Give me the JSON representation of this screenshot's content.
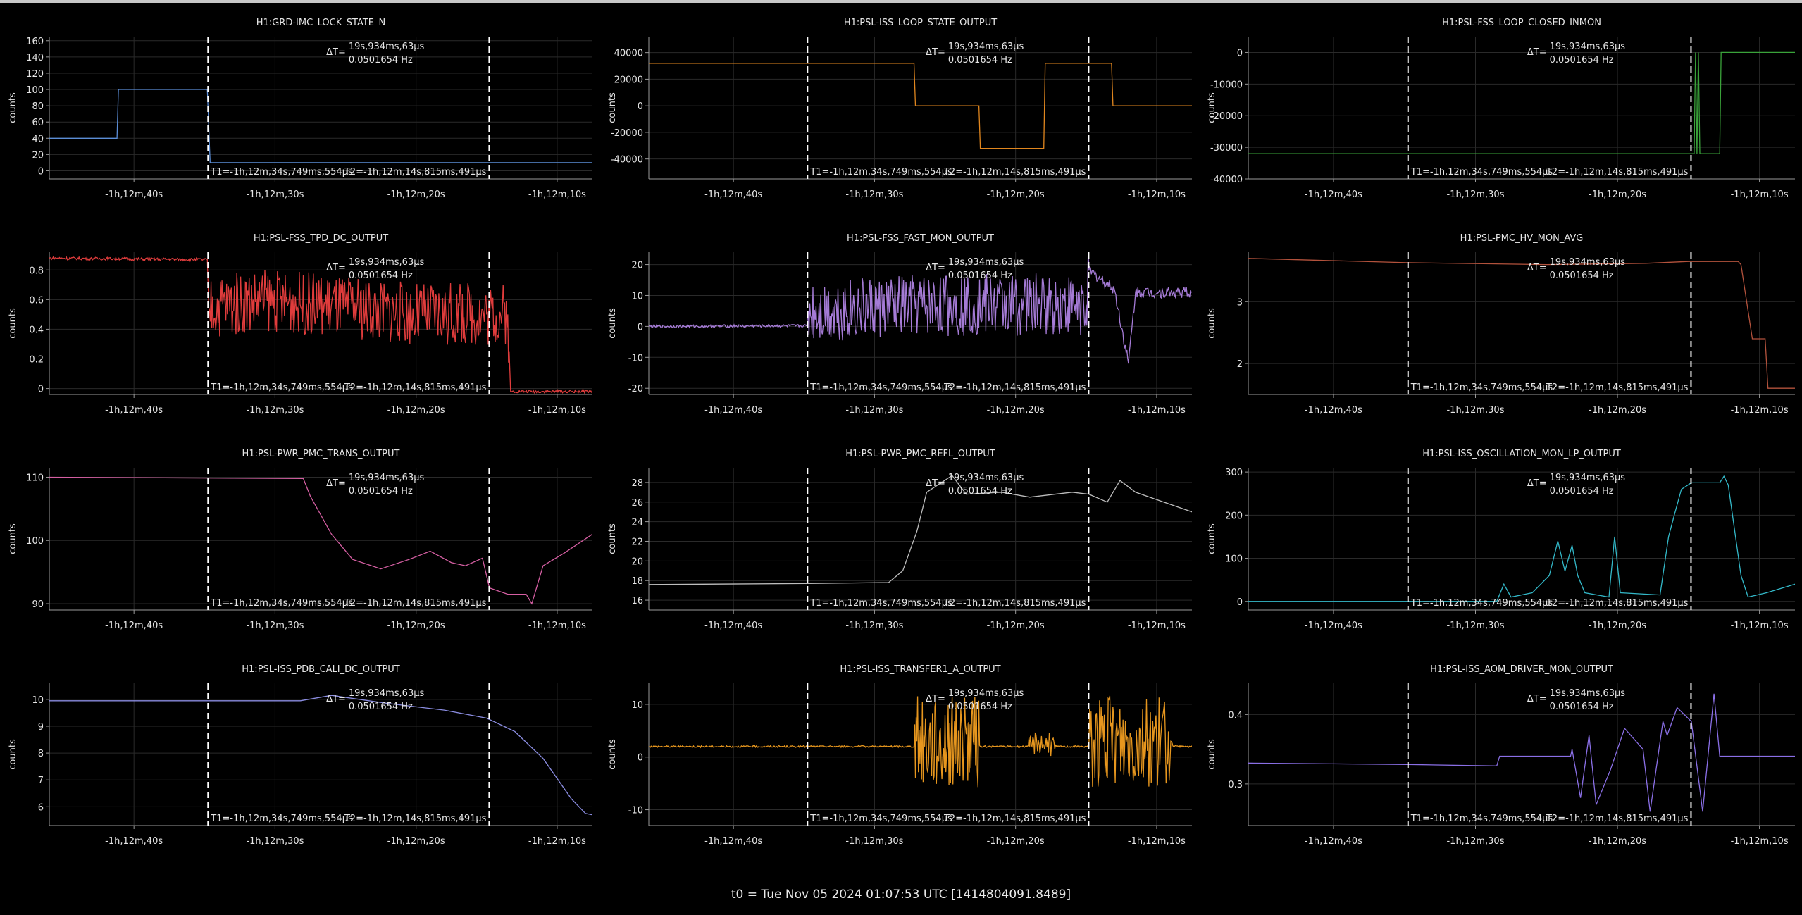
{
  "footer": "t0 = Tue Nov 05 2024 01:07:53 UTC [1414804091.8489]",
  "cursor": {
    "dt_line1": "19s,934ms,63μs",
    "dt_line2": "0.0501654 Hz",
    "dt_prefix": "ΔT=",
    "t1_label": "T1=-1h,12m,34s,749ms,554μs",
    "t2_label": "T2=-1h,12m,14s,815ms,491μs",
    "t1": -34.75,
    "t2": -14.82
  },
  "x_axis": {
    "range": [
      -46,
      -7.5
    ],
    "ticks": [
      {
        "value": -40,
        "label": "-1h,12m,40s"
      },
      {
        "value": -30,
        "label": "-1h,12m,30s"
      },
      {
        "value": -20,
        "label": "-1h,12m,20s"
      },
      {
        "value": -10,
        "label": "-1h,12m,10s"
      }
    ]
  },
  "chart_data": [
    {
      "type": "line",
      "title": "H1:GRD-IMC_LOCK_STATE_N",
      "ylabel": "counts",
      "color": "#5b8dd6",
      "ylim": [
        -10,
        165
      ],
      "yticks": [
        0,
        20,
        40,
        60,
        80,
        100,
        120,
        140,
        160
      ],
      "noisy": false,
      "points": [
        [
          -46,
          40
        ],
        [
          -41.2,
          40
        ],
        [
          -41.1,
          100
        ],
        [
          -34.8,
          100
        ],
        [
          -34.6,
          10
        ],
        [
          -7.5,
          10
        ]
      ]
    },
    {
      "type": "line",
      "title": "H1:PSL-ISS_LOOP_STATE_OUTPUT",
      "ylabel": "counts",
      "color": "#e0861e",
      "ylim": [
        -55000,
        52000
      ],
      "yticks": [
        -40000,
        -20000,
        0,
        20000,
        40000
      ],
      "noisy": false,
      "points": [
        [
          -46,
          32000
        ],
        [
          -28.5,
          32000
        ],
        [
          -28.5,
          32000
        ],
        [
          -27.2,
          32000
        ],
        [
          -27.1,
          0
        ],
        [
          -22.6,
          0
        ],
        [
          -22.5,
          -32000
        ],
        [
          -18,
          -32000
        ],
        [
          -17.9,
          32000
        ],
        [
          -13.2,
          32000
        ],
        [
          -13.1,
          0
        ],
        [
          -7.5,
          0
        ]
      ]
    },
    {
      "type": "line",
      "title": "H1:PSL-FSS_LOOP_CLOSED_INMON",
      "ylabel": "counts",
      "color": "#3aa33a",
      "ylim": [
        -40000,
        5000
      ],
      "yticks": [
        -40000,
        -30000,
        -20000,
        -10000,
        0
      ],
      "noisy": false,
      "points": [
        [
          -46,
          -32000
        ],
        [
          -14.8,
          -32000
        ],
        [
          -14.6,
          -32000
        ],
        [
          -14.5,
          0
        ],
        [
          -14.4,
          -32000
        ],
        [
          -14.3,
          0
        ],
        [
          -14.2,
          -32000
        ],
        [
          -12.9,
          -32000
        ],
        [
          -12.8,
          -32000
        ],
        [
          -12.7,
          0
        ],
        [
          -7.5,
          0
        ]
      ]
    },
    {
      "type": "line",
      "title": "H1:PSL-FSS_TPD_DC_OUTPUT",
      "ylabel": "counts",
      "color": "#e03c3c",
      "ylim": [
        -0.04,
        0.92
      ],
      "yticks": [
        0,
        0.2,
        0.4,
        0.6,
        0.8
      ],
      "noisy": true,
      "points": [
        [
          -46,
          0.88
        ],
        [
          -34.8,
          0.87
        ],
        [
          -34.7,
          0.55
        ],
        [
          -31,
          0.6
        ],
        [
          -25,
          0.55
        ],
        [
          -20,
          0.5
        ],
        [
          -15,
          0.5
        ],
        [
          -13.5,
          0.5
        ],
        [
          -13.3,
          -0.02
        ],
        [
          -7.5,
          -0.02
        ]
      ]
    },
    {
      "type": "line",
      "title": "H1:PSL-FSS_FAST_MON_OUTPUT",
      "ylabel": "counts",
      "color": "#a57bd6",
      "ylim": [
        -22,
        24
      ],
      "yticks": [
        -20,
        -10,
        0,
        10,
        20
      ],
      "noisy": true,
      "points": [
        [
          -46,
          0
        ],
        [
          -34.8,
          0.2
        ],
        [
          -34.7,
          5
        ],
        [
          -25,
          7
        ],
        [
          -15,
          7
        ],
        [
          -14.8,
          18
        ],
        [
          -13,
          12
        ],
        [
          -12,
          -12
        ],
        [
          -11.5,
          11
        ],
        [
          -7.5,
          11
        ]
      ]
    },
    {
      "type": "line",
      "title": "H1:PSL-PMC_HV_MON_AVG",
      "ylabel": "counts",
      "color": "#b3523c",
      "ylim": [
        1.5,
        3.8
      ],
      "yticks": [
        2,
        3
      ],
      "noisy": false,
      "points": [
        [
          -46,
          3.7
        ],
        [
          -34.8,
          3.63
        ],
        [
          -25,
          3.6
        ],
        [
          -18,
          3.62
        ],
        [
          -15,
          3.65
        ],
        [
          -11.5,
          3.65
        ],
        [
          -11.3,
          3.6
        ],
        [
          -10.5,
          2.4
        ],
        [
          -9.6,
          2.4
        ],
        [
          -9.4,
          1.6
        ],
        [
          -7.5,
          1.6
        ]
      ]
    },
    {
      "type": "line",
      "title": "H1:PSL-PWR_PMC_TRANS_OUTPUT",
      "ylabel": "counts",
      "color": "#d65fa3",
      "ylim": [
        89,
        111.5
      ],
      "yticks": [
        90,
        100,
        110
      ],
      "noisy": false,
      "points": [
        [
          -46,
          110
        ],
        [
          -28,
          109.8
        ],
        [
          -27.5,
          107
        ],
        [
          -26,
          101
        ],
        [
          -24.5,
          97
        ],
        [
          -22.5,
          95.5
        ],
        [
          -20.5,
          97
        ],
        [
          -19,
          98.3
        ],
        [
          -17.5,
          96.5
        ],
        [
          -16.5,
          96
        ],
        [
          -15.3,
          97.2
        ],
        [
          -14.8,
          92.5
        ],
        [
          -13.5,
          91.5
        ],
        [
          -12.2,
          91.5
        ],
        [
          -11.8,
          90
        ],
        [
          -11,
          96
        ],
        [
          -9.5,
          98
        ],
        [
          -7.5,
          101
        ]
      ]
    },
    {
      "type": "line",
      "title": "H1:PSL-PWR_PMC_REFL_OUTPUT",
      "ylabel": "counts",
      "color": "#bdbdbd",
      "ylim": [
        15,
        29.5
      ],
      "yticks": [
        16,
        18,
        20,
        22,
        24,
        26,
        28
      ],
      "noisy": false,
      "points": [
        [
          -46,
          17.6
        ],
        [
          -34.8,
          17.7
        ],
        [
          -29,
          17.8
        ],
        [
          -28,
          19
        ],
        [
          -27,
          23
        ],
        [
          -26.3,
          27
        ],
        [
          -24.5,
          28.7
        ],
        [
          -23.5,
          26.8
        ],
        [
          -21,
          27
        ],
        [
          -19,
          26.5
        ],
        [
          -16,
          27
        ],
        [
          -14.8,
          26.8
        ],
        [
          -13.5,
          26
        ],
        [
          -12.6,
          28.2
        ],
        [
          -11.5,
          27
        ],
        [
          -9.5,
          26
        ],
        [
          -7.5,
          25
        ]
      ]
    },
    {
      "type": "line",
      "title": "H1:PSL-ISS_OSCILLATION_MON_LP_OUTPUT",
      "ylabel": "counts",
      "color": "#33b8c8",
      "ylim": [
        -20,
        310
      ],
      "yticks": [
        0,
        100,
        200,
        300
      ],
      "noisy": false,
      "points": [
        [
          -46,
          0
        ],
        [
          -34.8,
          0
        ],
        [
          -28.5,
          0
        ],
        [
          -28,
          40
        ],
        [
          -27.5,
          10
        ],
        [
          -26,
          20
        ],
        [
          -24.8,
          60
        ],
        [
          -24.2,
          140
        ],
        [
          -23.7,
          70
        ],
        [
          -23.2,
          130
        ],
        [
          -22.8,
          60
        ],
        [
          -22.3,
          20
        ],
        [
          -20.6,
          10
        ],
        [
          -20.2,
          150
        ],
        [
          -19.8,
          20
        ],
        [
          -17,
          15
        ],
        [
          -16.4,
          150
        ],
        [
          -16,
          200
        ],
        [
          -15.5,
          260
        ],
        [
          -14.8,
          275
        ],
        [
          -12.8,
          275
        ],
        [
          -12.5,
          290
        ],
        [
          -12.2,
          270
        ],
        [
          -11.3,
          60
        ],
        [
          -10.8,
          10
        ],
        [
          -9.5,
          20
        ],
        [
          -7.5,
          40
        ]
      ]
    },
    {
      "type": "line",
      "title": "H1:PSL-ISS_PDB_CALI_DC_OUTPUT",
      "ylabel": "counts",
      "color": "#8a8ce0",
      "ylim": [
        5.3,
        10.6
      ],
      "yticks": [
        6,
        7,
        8,
        9,
        10
      ],
      "noisy": false,
      "points": [
        [
          -46,
          9.95
        ],
        [
          -28.2,
          9.95
        ],
        [
          -26,
          10.15
        ],
        [
          -22,
          9.85
        ],
        [
          -18,
          9.6
        ],
        [
          -15,
          9.3
        ],
        [
          -13,
          8.8
        ],
        [
          -11,
          7.8
        ],
        [
          -9,
          6.3
        ],
        [
          -8,
          5.75
        ],
        [
          -7.5,
          5.7
        ]
      ]
    },
    {
      "type": "line",
      "title": "H1:PSL-ISS_TRANSFER1_A_OUTPUT",
      "ylabel": "counts",
      "color": "#e6961e",
      "ylim": [
        -13,
        14
      ],
      "yticks": [
        -10,
        0,
        10
      ],
      "noisy": true,
      "points": [
        [
          -46,
          2
        ],
        [
          -27.2,
          2
        ],
        [
          -27,
          3
        ],
        [
          -23,
          3
        ],
        [
          -22.5,
          2
        ],
        [
          -19.2,
          2
        ],
        [
          -19,
          2
        ],
        [
          -18.5,
          3
        ],
        [
          -17,
          2
        ],
        [
          -14.8,
          2
        ],
        [
          -14.6,
          3
        ],
        [
          -9,
          3
        ],
        [
          -8.8,
          2
        ],
        [
          -7.5,
          2
        ]
      ]
    },
    {
      "type": "line",
      "title": "H1:PSL-ISS_AOM_DRIVER_MON_OUTPUT",
      "ylabel": "counts",
      "color": "#8a6fe6",
      "ylim": [
        0.24,
        0.445
      ],
      "yticks": [
        0.3,
        0.4
      ],
      "noisy": false,
      "points": [
        [
          -46,
          0.33
        ],
        [
          -34.8,
          0.328
        ],
        [
          -28.5,
          0.326
        ],
        [
          -28.3,
          0.34
        ],
        [
          -23.3,
          0.34
        ],
        [
          -23.2,
          0.35
        ],
        [
          -22.6,
          0.28
        ],
        [
          -22,
          0.37
        ],
        [
          -21.5,
          0.27
        ],
        [
          -20.5,
          0.32
        ],
        [
          -19.5,
          0.38
        ],
        [
          -18.2,
          0.35
        ],
        [
          -17.7,
          0.26
        ],
        [
          -16.8,
          0.39
        ],
        [
          -16.5,
          0.37
        ],
        [
          -15.8,
          0.41
        ],
        [
          -14.8,
          0.39
        ],
        [
          -14,
          0.26
        ],
        [
          -13.2,
          0.43
        ],
        [
          -12.8,
          0.34
        ],
        [
          -7.5,
          0.34
        ]
      ]
    }
  ]
}
